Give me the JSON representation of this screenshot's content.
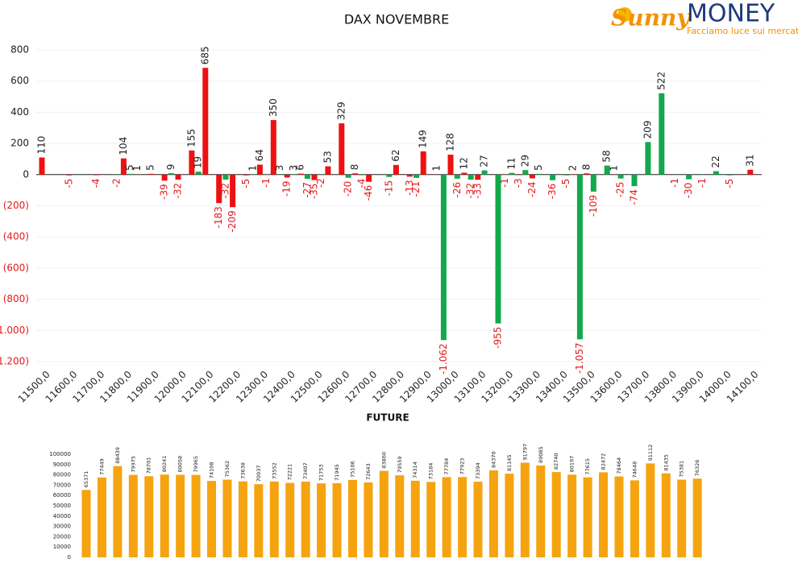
{
  "logo": {
    "brand": "Sunny",
    "name": "MONEY",
    "tagline": "Facciamo luce sui mercati"
  },
  "chart_data": [
    {
      "type": "bar",
      "title": "DAX NOVEMBRE",
      "categories": [
        "11500,0",
        null,
        "11600,0",
        null,
        "11700,0",
        null,
        "11800,0",
        null,
        "11900,0",
        null,
        "12000,0",
        null,
        "12100,0",
        null,
        "12200,0",
        null,
        "12300,0",
        null,
        "12400,0",
        null,
        "12500,0",
        null,
        "12600,0",
        null,
        "12700,0",
        null,
        "12800,0",
        null,
        "12900,0",
        null,
        "13000,0",
        null,
        "13100,0",
        null,
        "13200,0",
        null,
        "13300,0",
        null,
        "13400,0",
        null,
        "13500,0",
        null,
        "13600,0",
        null,
        "13700,0",
        null,
        "13800,0",
        null,
        "13900,0",
        null,
        "14000,0",
        null,
        "14100,0"
      ],
      "series": [
        {
          "color": "#ee1111",
          "values": [
            110,
            null,
            -5,
            null,
            -4,
            null,
            104,
            1,
            5,
            -39,
            -32,
            155,
            685,
            -183,
            -209,
            -5,
            64,
            350,
            -19,
            6,
            -35,
            53,
            329,
            8,
            -46,
            null,
            62,
            -13,
            149,
            1,
            128,
            12,
            -33,
            null,
            -1,
            -3,
            -24,
            null,
            null,
            2,
            8,
            null,
            1,
            null,
            null,
            null,
            null,
            null,
            null,
            null,
            null,
            null,
            31
          ]
        },
        {
          "color": "#12a84b",
          "values": [
            null,
            null,
            null,
            null,
            null,
            -2,
            5,
            null,
            null,
            9,
            null,
            19,
            null,
            -32,
            null,
            1,
            -1,
            3,
            3,
            -27,
            -2,
            null,
            -20,
            -4,
            null,
            -15,
            null,
            -21,
            null,
            -1062,
            -26,
            -32,
            27,
            -955,
            11,
            29,
            5,
            -36,
            -5,
            -1057,
            -109,
            58,
            -25,
            -74,
            209,
            522,
            -1,
            -30,
            -1,
            22,
            -5,
            null,
            null
          ],
          "value_labels": [
            null,
            null,
            null,
            null,
            null,
            null,
            null,
            null,
            null,
            null,
            null,
            null,
            null,
            null,
            null,
            null,
            null,
            null,
            null,
            null,
            null,
            null,
            null,
            null,
            null,
            null,
            null,
            null,
            null,
            "-1.062",
            null,
            null,
            null,
            null,
            null,
            null,
            null,
            null,
            null,
            "-1.057",
            null,
            null,
            null,
            null,
            null,
            null,
            null,
            null,
            null,
            null,
            null,
            null,
            null
          ]
        }
      ],
      "ylim": [
        -1200,
        800
      ],
      "yticks": [
        800,
        600,
        400,
        200,
        0,
        {
          "value": -200,
          "label": "(200)"
        },
        {
          "value": -400,
          "label": "(400)"
        },
        {
          "value": -600,
          "label": "(600)"
        },
        {
          "value": -800,
          "label": "(800)"
        },
        {
          "value": -1000,
          "label": "(1.000)"
        },
        {
          "value": -1200,
          "label": "(1.200)"
        }
      ],
      "grid": true
    },
    {
      "type": "bar",
      "title": "FUTURE",
      "values": [
        65371,
        77449,
        88439,
        79975,
        78701,
        80241,
        80058,
        79965,
        74108,
        75362,
        73638,
        70937,
        73552,
        72221,
        73407,
        71753,
        71945,
        75106,
        72643,
        83860,
        79559,
        74314,
        73184,
        77784,
        77923,
        73394,
        84370,
        81145,
        91797,
        89085,
        82740,
        80197,
        77615,
        82472,
        78464,
        74648,
        91112,
        81435,
        75381,
        76326
      ],
      "color": "#f5a30f",
      "ylim": [
        0,
        100000
      ],
      "yticks": [
        0,
        10000,
        20000,
        30000,
        40000,
        50000,
        60000,
        70000,
        80000,
        90000,
        100000
      ],
      "grid": false
    }
  ]
}
